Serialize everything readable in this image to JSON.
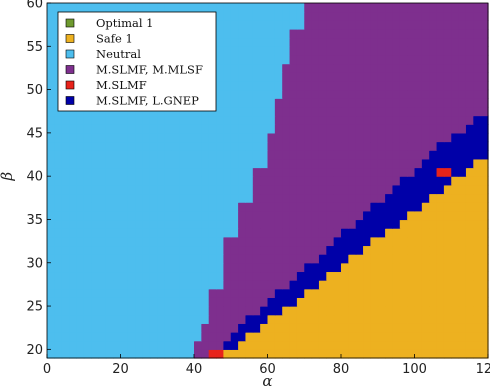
{
  "chart_data": {
    "type": "heatmap",
    "title": "",
    "xlabel": "α",
    "ylabel": "β",
    "xlim": [
      0,
      120
    ],
    "ylim": [
      19,
      60
    ],
    "x_ticks": [
      "0",
      "20",
      "40",
      "60",
      "80",
      "100",
      "120"
    ],
    "y_ticks": [
      "20",
      "25",
      "30",
      "35",
      "40",
      "45",
      "50",
      "55",
      "60"
    ],
    "legend_position": "top-left",
    "categories": [
      {
        "name": "Optimal 1",
        "color": "#6e9a2f"
      },
      {
        "name": "Safe 1",
        "color": "#edb120"
      },
      {
        "name": "Neutral",
        "color": "#4dbeee"
      },
      {
        "name": "M.SLMF, M.MLSF",
        "color": "#7e2f8e"
      },
      {
        "name": "M.SLMF",
        "color": "#e8231b"
      },
      {
        "name": "M.SLMF, L.GNEP",
        "color": "#0000a8"
      }
    ],
    "cell_size": {
      "alpha": 2,
      "beta": 1
    },
    "neutral_boundary": [
      {
        "beta_from": 19,
        "beta_to": 21,
        "alpha": 40
      },
      {
        "beta_from": 21,
        "beta_to": 23,
        "alpha": 42
      },
      {
        "beta_from": 23,
        "beta_to": 27,
        "alpha": 44
      },
      {
        "beta_from": 27,
        "beta_to": 33,
        "alpha": 48
      },
      {
        "beta_from": 33,
        "beta_to": 37,
        "alpha": 52
      },
      {
        "beta_from": 37,
        "beta_to": 41,
        "alpha": 56
      },
      {
        "beta_from": 41,
        "beta_to": 45,
        "alpha": 60
      },
      {
        "beta_from": 45,
        "beta_to": 49,
        "alpha": 62
      },
      {
        "beta_from": 49,
        "beta_to": 53,
        "alpha": 64
      },
      {
        "beta_from": 53,
        "beta_to": 57,
        "alpha": 66
      },
      {
        "beta_from": 57,
        "beta_to": 60,
        "alpha": 70
      }
    ],
    "safe_start_alpha_at_beta_19": 47,
    "safe_boundary_slope_alpha_per_beta": 3.1,
    "m_slmf_l_gnep_width_alpha": [
      4,
      16
    ],
    "m_slmf_cells": [
      {
        "alpha_from": 44,
        "alpha_to": 48,
        "beta_from": 19,
        "beta_to": 20
      },
      {
        "alpha_from": 106,
        "alpha_to": 110,
        "beta_from": 40,
        "beta_to": 41
      }
    ]
  }
}
